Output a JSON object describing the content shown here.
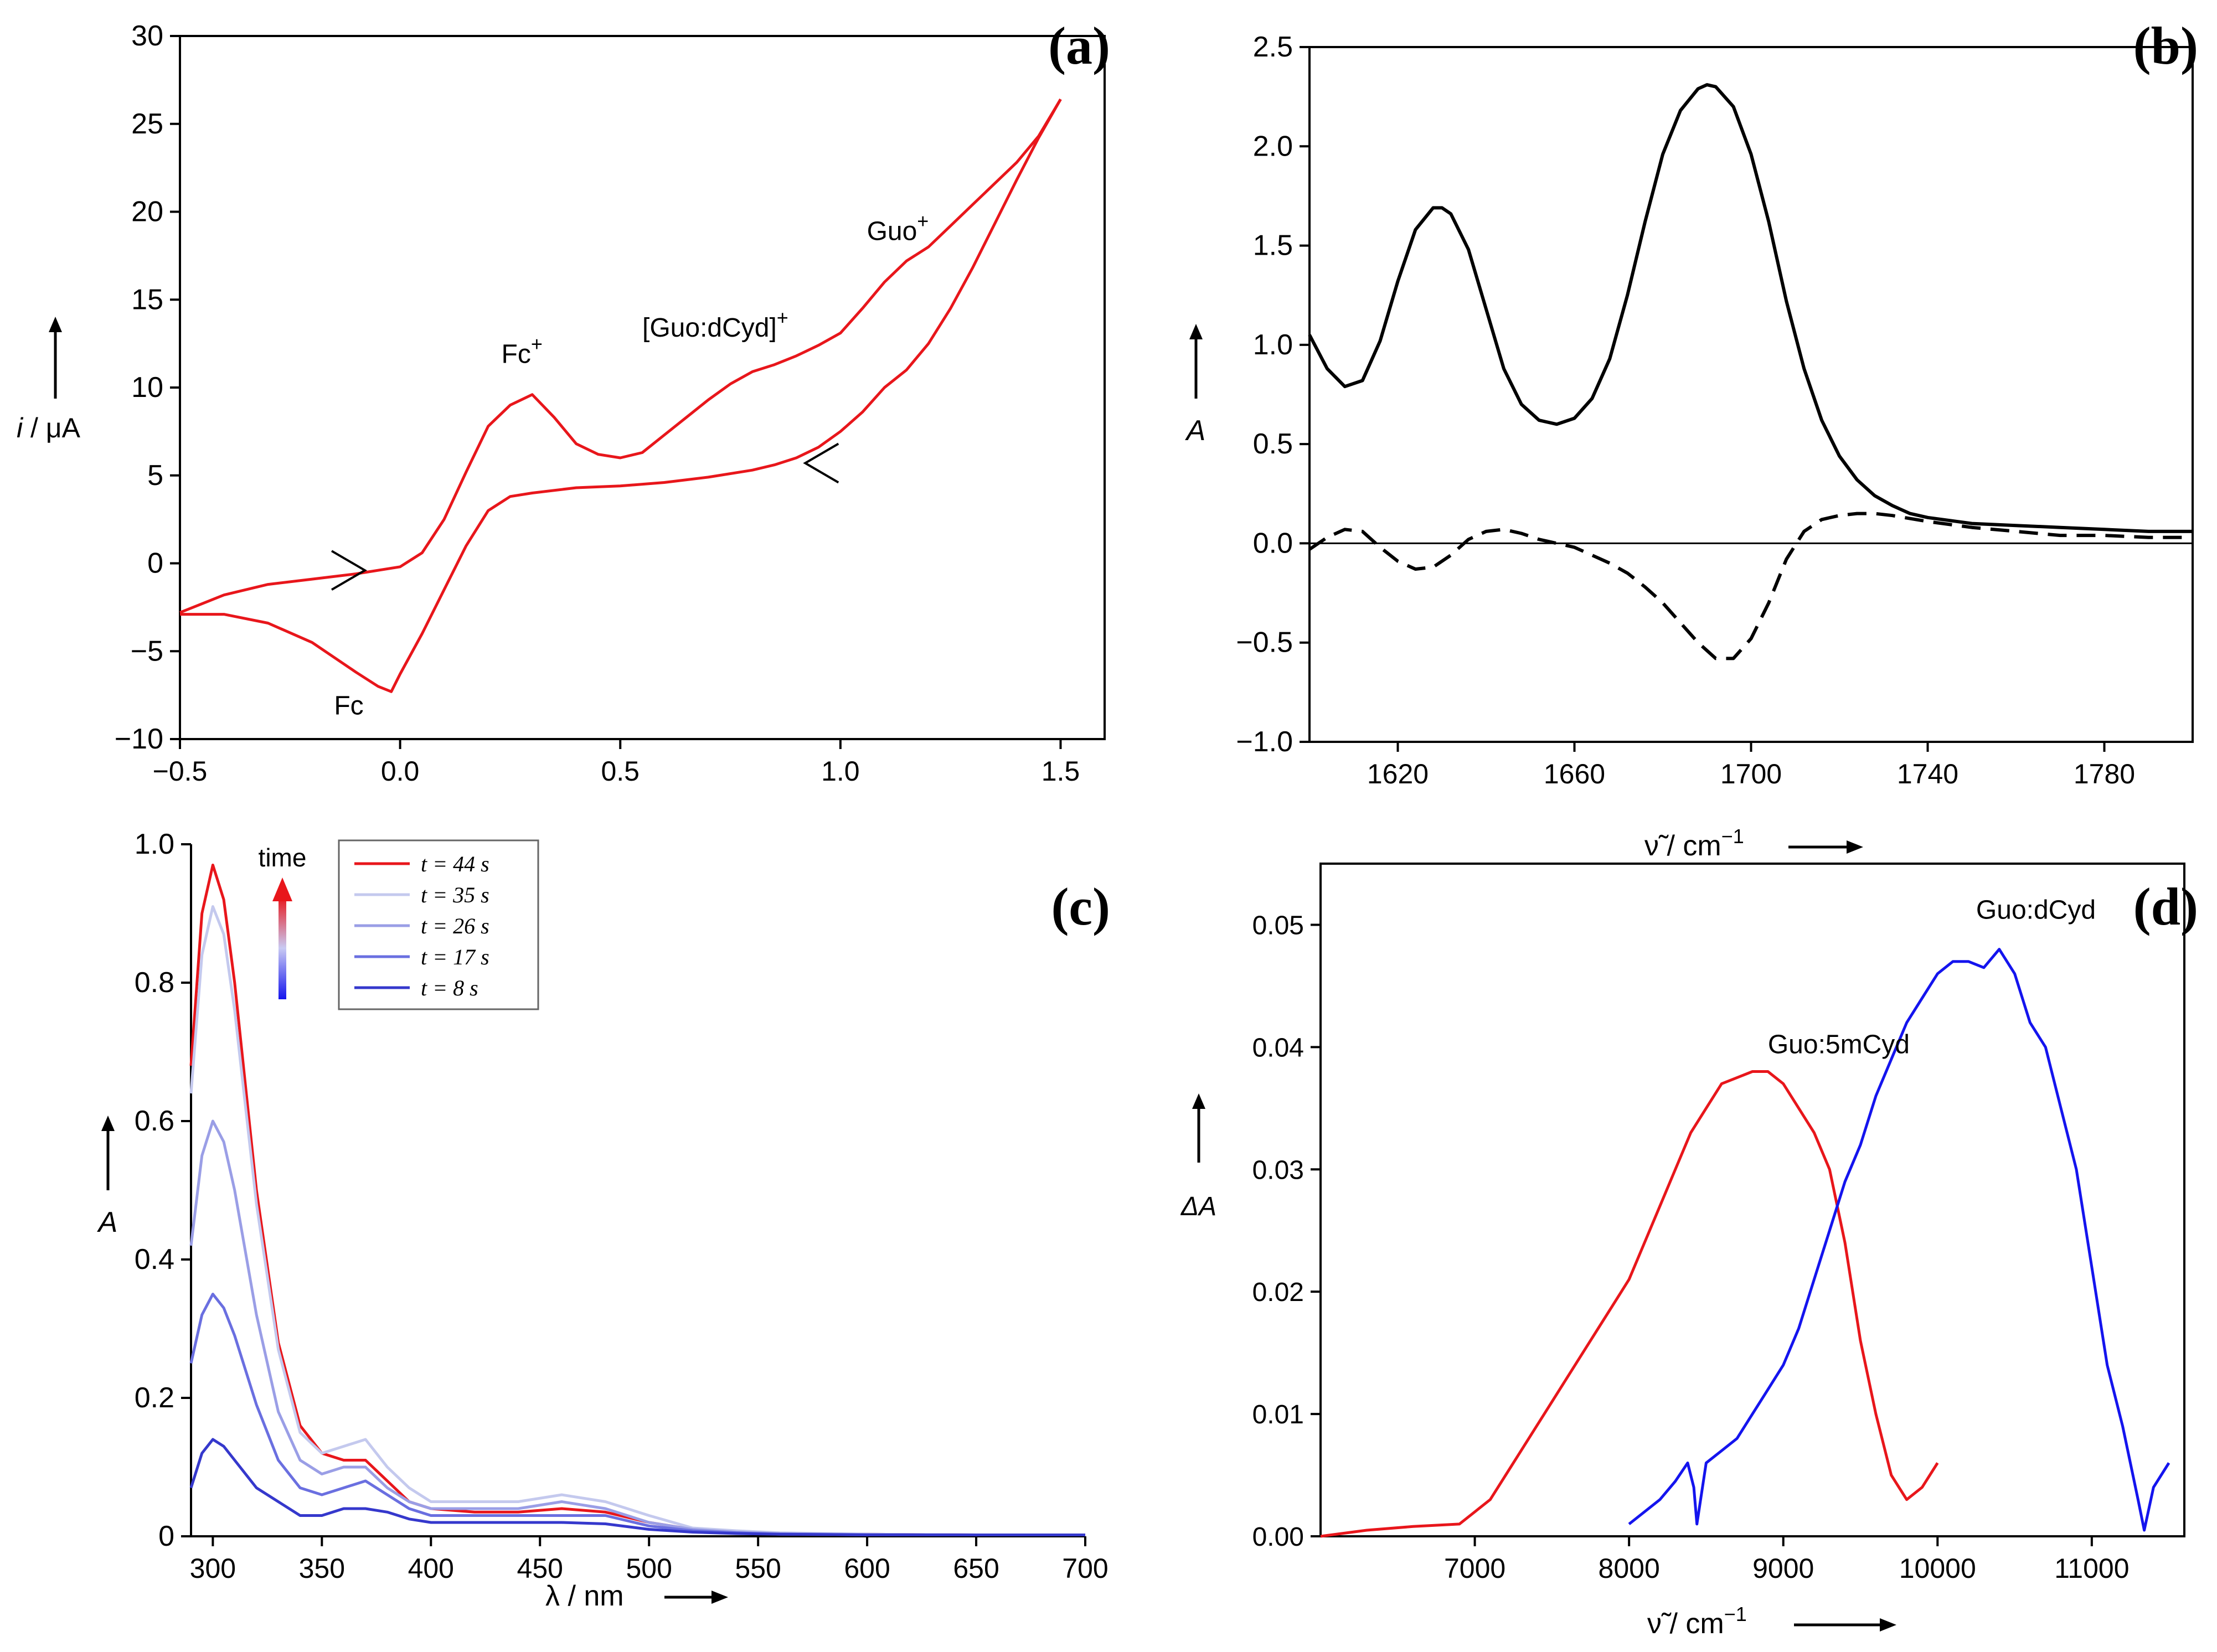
{
  "colors": {
    "red": "#e8161b",
    "blue": "#1414ee",
    "black": "#000000"
  },
  "chart_data": [
    {
      "id": "a",
      "type": "line",
      "panel_label": "(a)",
      "xlabel": "",
      "ylabel_italic": "i",
      "ylabel_rest": " / μA",
      "xlim": [
        -0.5,
        1.6
      ],
      "ylim": [
        -10,
        30
      ],
      "xticks": [
        -0.5,
        0.0,
        0.5,
        1.0,
        1.5
      ],
      "xtick_labels": [
        "−0.5",
        "0.0",
        "0.5",
        "1.0",
        "1.5"
      ],
      "yticks": [
        -10,
        -5,
        0,
        5,
        10,
        15,
        20,
        25,
        30
      ],
      "ytick_labels": [
        "−10",
        "−5",
        "0",
        "5",
        "10",
        "15",
        "20",
        "25",
        "30"
      ],
      "series": [
        {
          "name": "forward",
          "color": "#e8161b",
          "x": [
            -0.5,
            -0.4,
            -0.3,
            -0.2,
            -0.1,
            0.0,
            0.05,
            0.1,
            0.15,
            0.2,
            0.25,
            0.3,
            0.35,
            0.4,
            0.45,
            0.5,
            0.55,
            0.6,
            0.65,
            0.7,
            0.75,
            0.8,
            0.85,
            0.9,
            0.95,
            1.0,
            1.05,
            1.1,
            1.15,
            1.2,
            1.25,
            1.3,
            1.35,
            1.4,
            1.45,
            1.5
          ],
          "y": [
            -2.8,
            -1.8,
            -1.2,
            -0.9,
            -0.6,
            -0.2,
            0.6,
            2.5,
            5.2,
            7.8,
            9.0,
            9.6,
            8.3,
            6.8,
            6.2,
            6.0,
            6.3,
            7.3,
            8.3,
            9.3,
            10.2,
            10.9,
            11.3,
            11.8,
            12.4,
            13.1,
            14.5,
            16.0,
            17.2,
            18.0,
            19.2,
            20.4,
            21.6,
            22.8,
            24.3,
            26.4
          ]
        },
        {
          "name": "reverse",
          "color": "#e8161b",
          "x": [
            1.5,
            1.45,
            1.4,
            1.35,
            1.3,
            1.25,
            1.2,
            1.15,
            1.1,
            1.05,
            1.0,
            0.95,
            0.9,
            0.85,
            0.8,
            0.7,
            0.6,
            0.5,
            0.4,
            0.3,
            0.25,
            0.2,
            0.15,
            0.1,
            0.05,
            0.0,
            -0.02,
            -0.05,
            -0.1,
            -0.2,
            -0.3,
            -0.4,
            -0.5
          ],
          "y": [
            26.4,
            24.2,
            21.8,
            19.3,
            16.8,
            14.5,
            12.5,
            11.0,
            10.0,
            8.6,
            7.5,
            6.6,
            6.0,
            5.6,
            5.3,
            4.9,
            4.6,
            4.4,
            4.3,
            4.0,
            3.8,
            3.0,
            1.0,
            -1.5,
            -4.0,
            -6.3,
            -7.3,
            -7.0,
            -6.2,
            -4.5,
            -3.4,
            -2.9,
            -2.9
          ]
        }
      ],
      "annotations": [
        {
          "text": "Fc",
          "sup": "+",
          "x": 0.23,
          "y": 11.4
        },
        {
          "text": "[Guo:dCyd]",
          "sup": "+",
          "x": 0.55,
          "y": 12.9
        },
        {
          "text": "Guo",
          "sup": "+",
          "x": 1.06,
          "y": 18.4
        },
        {
          "text": "Fc",
          "sup": "",
          "x": -0.15,
          "y": -8.6
        }
      ],
      "arrows": [
        {
          "at_x": -0.08,
          "at_y": -0.4,
          "direction": "right"
        },
        {
          "at_x": 0.92,
          "at_y": 5.7,
          "direction": "left"
        }
      ]
    },
    {
      "id": "b",
      "type": "line",
      "panel_label": "(b)",
      "xlabel": "ν̃ / cm",
      "xlabel_sup": "−1",
      "ylabel": "A",
      "xlim": [
        1600,
        1800
      ],
      "ylim": [
        -1.0,
        2.5
      ],
      "xticks": [
        1620,
        1660,
        1700,
        1740,
        1780
      ],
      "xtick_labels": [
        "1620",
        "1660",
        "1700",
        "1740",
        "1780"
      ],
      "yticks": [
        -1.0,
        -0.5,
        0.0,
        0.5,
        1.0,
        1.5,
        2.0,
        2.5
      ],
      "ytick_labels": [
        "−1.0",
        "−0.5",
        "0.0",
        "0.5",
        "1.0",
        "1.5",
        "2.0",
        "2.5"
      ],
      "baseline": 0.0,
      "series": [
        {
          "name": "solid",
          "style": "solid",
          "color": "#000000",
          "x": [
            1600,
            1604,
            1608,
            1612,
            1616,
            1620,
            1624,
            1628,
            1630,
            1632,
            1636,
            1640,
            1644,
            1648,
            1652,
            1656,
            1660,
            1664,
            1668,
            1672,
            1676,
            1680,
            1684,
            1688,
            1690,
            1692,
            1696,
            1700,
            1704,
            1708,
            1712,
            1716,
            1720,
            1724,
            1728,
            1732,
            1736,
            1740,
            1750,
            1760,
            1770,
            1780,
            1790,
            1800
          ],
          "y": [
            1.05,
            0.88,
            0.79,
            0.82,
            1.02,
            1.32,
            1.58,
            1.69,
            1.69,
            1.66,
            1.48,
            1.18,
            0.88,
            0.7,
            0.62,
            0.6,
            0.63,
            0.73,
            0.93,
            1.25,
            1.62,
            1.96,
            2.18,
            2.29,
            2.31,
            2.3,
            2.2,
            1.96,
            1.62,
            1.22,
            0.88,
            0.62,
            0.44,
            0.32,
            0.24,
            0.19,
            0.15,
            0.13,
            0.1,
            0.09,
            0.08,
            0.07,
            0.06,
            0.06
          ]
        },
        {
          "name": "dashed",
          "style": "dashed",
          "color": "#000000",
          "x": [
            1600,
            1604,
            1608,
            1612,
            1616,
            1620,
            1624,
            1628,
            1632,
            1636,
            1640,
            1644,
            1648,
            1652,
            1656,
            1660,
            1664,
            1668,
            1672,
            1676,
            1680,
            1684,
            1688,
            1692,
            1696,
            1700,
            1704,
            1708,
            1712,
            1716,
            1720,
            1724,
            1728,
            1732,
            1740,
            1750,
            1760,
            1770,
            1780,
            1790,
            1800
          ],
          "y": [
            -0.03,
            0.03,
            0.07,
            0.06,
            -0.02,
            -0.09,
            -0.13,
            -0.12,
            -0.06,
            0.02,
            0.06,
            0.07,
            0.05,
            0.02,
            0.0,
            -0.02,
            -0.06,
            -0.1,
            -0.15,
            -0.22,
            -0.3,
            -0.4,
            -0.5,
            -0.58,
            -0.58,
            -0.48,
            -0.3,
            -0.08,
            0.06,
            0.12,
            0.14,
            0.15,
            0.15,
            0.14,
            0.11,
            0.08,
            0.06,
            0.04,
            0.04,
            0.03,
            0.03
          ]
        }
      ]
    },
    {
      "id": "c",
      "type": "line",
      "panel_label": "(c)",
      "xlabel": "λ / nm",
      "ylabel": "A",
      "legend_title": "time",
      "xlim": [
        290,
        700
      ],
      "ylim": [
        0,
        1.0
      ],
      "xticks": [
        300,
        350,
        400,
        450,
        500,
        550,
        600,
        650,
        700
      ],
      "xtick_labels": [
        "300",
        "350",
        "400",
        "450",
        "500",
        "550",
        "600",
        "650",
        "700"
      ],
      "yticks": [
        0,
        0.2,
        0.4,
        0.6,
        0.8,
        1.0
      ],
      "ytick_labels": [
        "0",
        "0.2",
        "0.4",
        "0.6",
        "0.8",
        "1.0"
      ],
      "x": [
        290,
        295,
        300,
        305,
        310,
        320,
        330,
        340,
        350,
        360,
        370,
        380,
        390,
        400,
        420,
        440,
        460,
        480,
        500,
        520,
        540,
        560,
        600,
        650,
        700
      ],
      "series": [
        {
          "name": "t = 44 s",
          "color": "#e8161b",
          "y": [
            0.68,
            0.9,
            0.97,
            0.92,
            0.8,
            0.5,
            0.28,
            0.16,
            0.12,
            0.11,
            0.11,
            0.08,
            0.05,
            0.04,
            0.035,
            0.035,
            0.04,
            0.035,
            0.02,
            0.01,
            0.006,
            0.004,
            0.003,
            0.002,
            0.002
          ]
        },
        {
          "name": "t = 35 s",
          "color": "#c4c9ee",
          "y": [
            0.64,
            0.84,
            0.91,
            0.87,
            0.76,
            0.48,
            0.27,
            0.15,
            0.12,
            0.13,
            0.14,
            0.1,
            0.07,
            0.05,
            0.05,
            0.05,
            0.06,
            0.05,
            0.03,
            0.012,
            0.008,
            0.005,
            0.003,
            0.002,
            0.002
          ]
        },
        {
          "name": "t = 26 s",
          "color": "#9a9ee6",
          "y": [
            0.42,
            0.55,
            0.6,
            0.57,
            0.5,
            0.32,
            0.18,
            0.11,
            0.09,
            0.1,
            0.1,
            0.07,
            0.05,
            0.04,
            0.04,
            0.04,
            0.05,
            0.04,
            0.02,
            0.01,
            0.006,
            0.004,
            0.003,
            0.002,
            0.002
          ]
        },
        {
          "name": "t = 17 s",
          "color": "#6a6fe0",
          "y": [
            0.25,
            0.32,
            0.35,
            0.33,
            0.29,
            0.19,
            0.11,
            0.07,
            0.06,
            0.07,
            0.08,
            0.06,
            0.04,
            0.03,
            0.03,
            0.03,
            0.03,
            0.03,
            0.015,
            0.008,
            0.005,
            0.003,
            0.002,
            0.002,
            0.002
          ]
        },
        {
          "name": "t = 8 s",
          "color": "#3538cc",
          "y": [
            0.07,
            0.12,
            0.14,
            0.13,
            0.11,
            0.07,
            0.05,
            0.03,
            0.03,
            0.04,
            0.04,
            0.035,
            0.025,
            0.02,
            0.02,
            0.02,
            0.02,
            0.018,
            0.01,
            0.006,
            0.004,
            0.003,
            0.002,
            0.002,
            0.002
          ]
        }
      ]
    },
    {
      "id": "d",
      "type": "line",
      "panel_label": "(d)",
      "xlabel": "ν̃ / cm",
      "xlabel_sup": "−1",
      "ylabel": "ΔA",
      "xlim": [
        6000,
        11600
      ],
      "ylim": [
        0.0,
        0.055
      ],
      "xticks": [
        7000,
        8000,
        9000,
        10000,
        11000
      ],
      "xtick_labels": [
        "7000",
        "8000",
        "9000",
        "10000",
        "11000"
      ],
      "yticks": [
        0.0,
        0.01,
        0.02,
        0.03,
        0.04,
        0.05
      ],
      "ytick_labels": [
        "0.00",
        "0.01",
        "0.02",
        "0.03",
        "0.04",
        "0.05"
      ],
      "series": [
        {
          "name": "Guo:5mCyd",
          "color": "#e8161b",
          "x": [
            6000,
            6300,
            6600,
            6900,
            7000,
            7100,
            7200,
            7300,
            7400,
            7500,
            7600,
            7700,
            7800,
            7900,
            8000,
            8100,
            8200,
            8300,
            8400,
            8500,
            8600,
            8700,
            8800,
            8900,
            9000,
            9100,
            9200,
            9300,
            9400,
            9500,
            9600,
            9700,
            9800,
            9900,
            10000
          ],
          "y": [
            0.0,
            0.0005,
            0.0008,
            0.001,
            0.002,
            0.003,
            0.005,
            0.007,
            0.009,
            0.011,
            0.013,
            0.015,
            0.017,
            0.019,
            0.021,
            0.024,
            0.027,
            0.03,
            0.033,
            0.035,
            0.037,
            0.0375,
            0.038,
            0.038,
            0.037,
            0.035,
            0.033,
            0.03,
            0.024,
            0.016,
            0.01,
            0.005,
            0.003,
            0.004,
            0.006
          ]
        },
        {
          "name": "Guo:dCyd",
          "color": "#1414ee",
          "x": [
            8000,
            8100,
            8200,
            8300,
            8380,
            8420,
            8440,
            8500,
            8600,
            8700,
            8800,
            8900,
            9000,
            9100,
            9200,
            9300,
            9400,
            9500,
            9600,
            9700,
            9800,
            9900,
            10000,
            10100,
            10200,
            10300,
            10400,
            10500,
            10600,
            10700,
            10800,
            10900,
            11000,
            11100,
            11200,
            11300,
            11340,
            11400,
            11500
          ],
          "y": [
            0.001,
            0.002,
            0.003,
            0.0045,
            0.006,
            0.004,
            0.001,
            0.006,
            0.007,
            0.008,
            0.01,
            0.012,
            0.014,
            0.017,
            0.021,
            0.025,
            0.029,
            0.032,
            0.036,
            0.039,
            0.042,
            0.044,
            0.046,
            0.047,
            0.047,
            0.0465,
            0.048,
            0.046,
            0.042,
            0.04,
            0.035,
            0.03,
            0.022,
            0.014,
            0.009,
            0.003,
            0.0005,
            0.004,
            0.006
          ]
        }
      ],
      "annotations": [
        {
          "text": "Guo:5mCyd",
          "x": 8900,
          "y": 0.0395
        },
        {
          "text": "Guo:dCyd",
          "x": 10250,
          "y": 0.0505
        }
      ]
    }
  ]
}
